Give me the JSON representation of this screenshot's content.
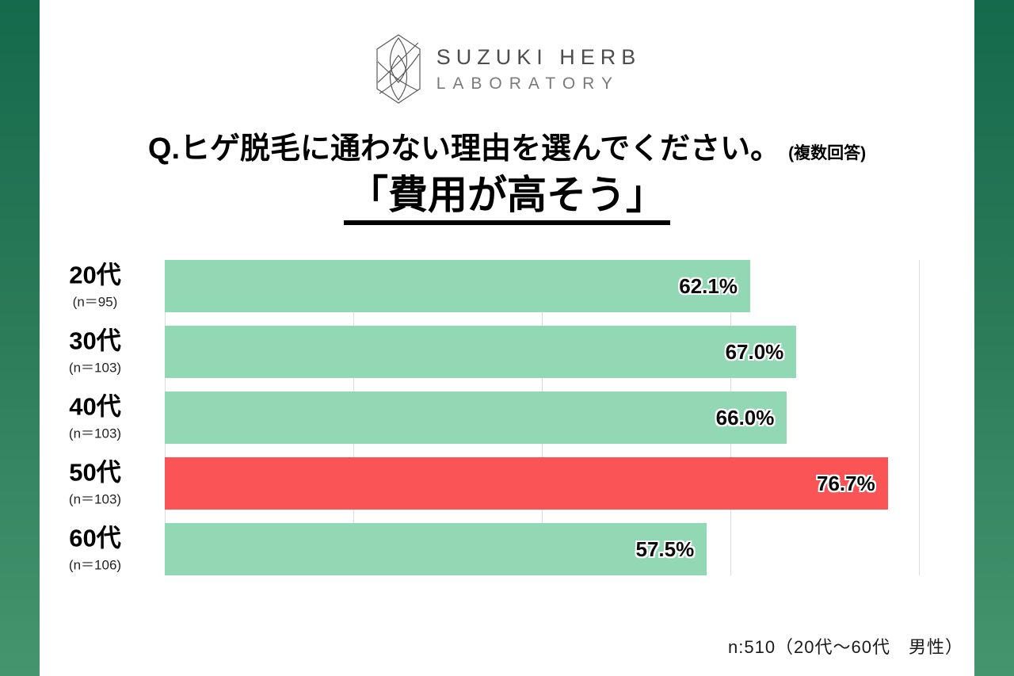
{
  "logo": {
    "line1": "SUZUKI HERB",
    "line2": "LABORATORY",
    "emblem_icon": "leaf-hexagon-emblem",
    "emblem_color": "#5a5a5a"
  },
  "header": {
    "question": "Q.ヒゲ脱毛に通わない理由を選んでください。",
    "question_suffix": "(複数回答)",
    "answer_highlight": "「費用が高そう」"
  },
  "chart_data": {
    "type": "bar",
    "orientation": "horizontal",
    "title": "Q.ヒゲ脱毛に通わない理由を選んでください。(複数回答)",
    "subtitle": "「費用が高そう」",
    "categories": [
      "20代",
      "30代",
      "40代",
      "50代",
      "60代"
    ],
    "category_sublabels": [
      "(n＝95)",
      "(n＝103)",
      "(n＝103)",
      "(n＝103)",
      "(n＝106)"
    ],
    "values": [
      62.1,
      67.0,
      66.0,
      76.7,
      57.5
    ],
    "value_labels": [
      "62.1%",
      "67.0%",
      "66.0%",
      "76.7%",
      "57.5%"
    ],
    "highlight_index": 3,
    "xlim": [
      0,
      80
    ],
    "gridlines": [
      0,
      20,
      40,
      60,
      80
    ],
    "grid_on": true,
    "legend": "none",
    "bar_color": "#93d8b4",
    "highlight_color": "#fb5457",
    "footnote": "n:510（20代〜60代　男性）"
  },
  "colors": {
    "background_gradient_top": "#15694c",
    "background_gradient_bottom": "#45966e",
    "card": "#ffffff",
    "bar_green": "#93d8b4",
    "bar_red": "#fb5457",
    "gridline": "#dcdcdc",
    "text": "#000000"
  }
}
